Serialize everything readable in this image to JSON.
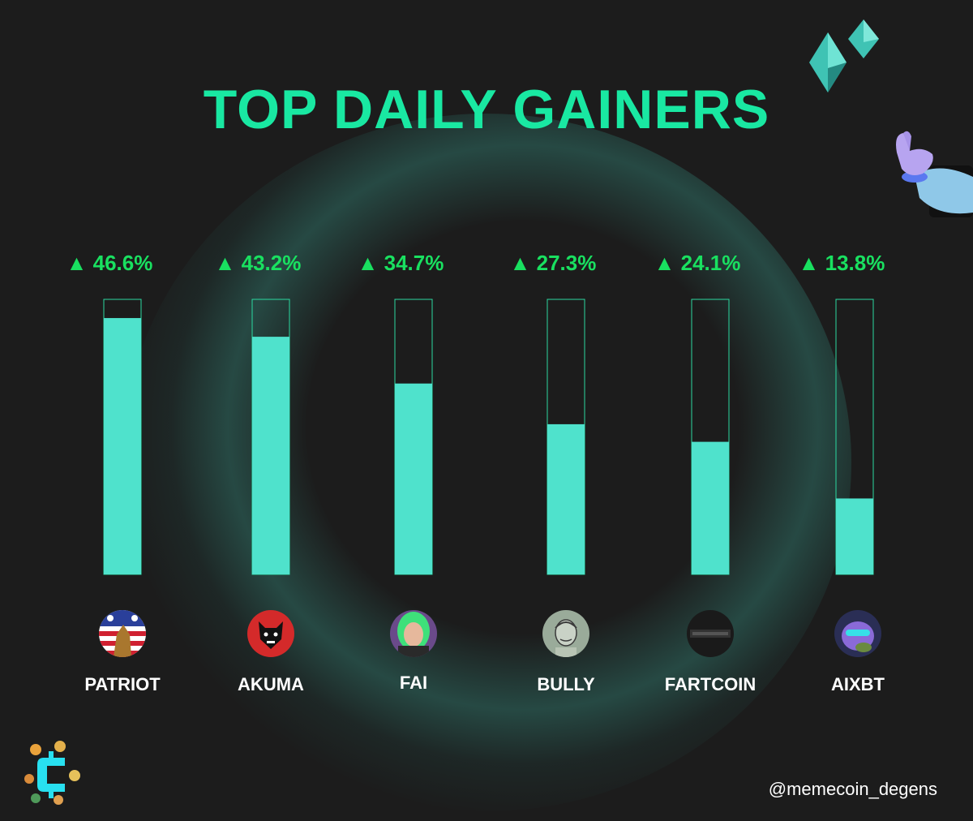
{
  "title": "TOP DAILY GAINERS",
  "handle": "@memecoin_degens",
  "colors": {
    "bar": "#4fe2cc",
    "bar_outline": "#2bd9a0",
    "label": "#19e060",
    "title": "#19e8a2"
  },
  "chart_data": {
    "type": "bar",
    "categories": [
      "PATRIOT",
      "AKUMA",
      "FAI",
      "BULLY",
      "FARTCOIN",
      "AIXBT"
    ],
    "values": [
      46.6,
      43.2,
      34.7,
      27.3,
      24.1,
      13.8
    ],
    "value_labels": [
      "▲ 46.6%",
      "▲ 43.2%",
      "▲ 34.7%",
      "▲ 27.3%",
      "▲ 24.1%",
      "▲ 13.8%"
    ],
    "ylim": [
      0,
      50
    ],
    "grid": false,
    "title": "TOP DAILY GAINERS"
  },
  "avatars": [
    "patriot-avatar",
    "akuma-avatar",
    "fai-avatar",
    "bully-avatar",
    "fartcoin-avatar",
    "aixbt-avatar"
  ]
}
